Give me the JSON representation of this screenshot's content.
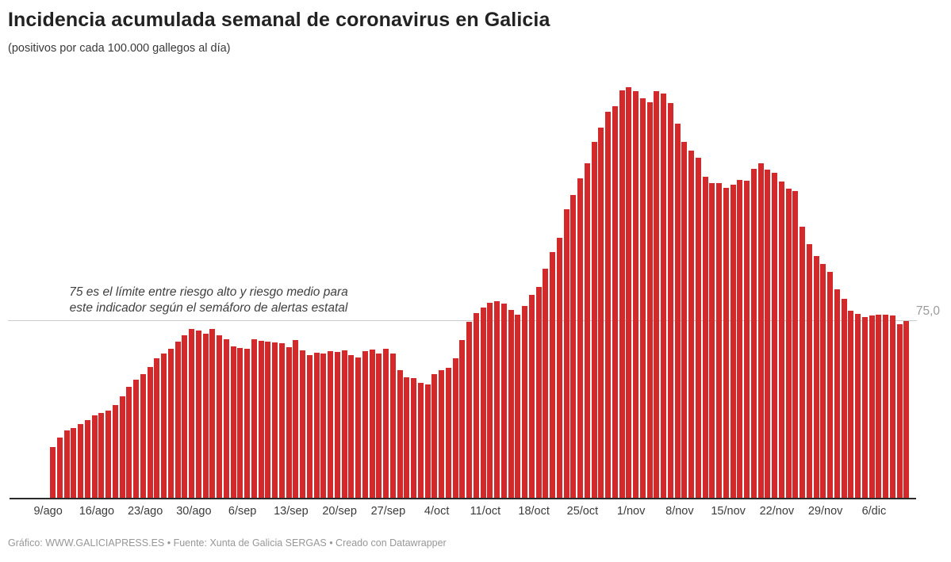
{
  "header": {
    "title": "Incidencia acumulada semanal de coronavirus en Galicia",
    "subtitle": "(positivos por cada 100.000 gallegos al día)"
  },
  "annotation": {
    "line1": "75 es el límite entre riesgo alto y riesgo medio para",
    "line2": "este indicador según el semáforo de alertas estatal"
  },
  "footer": {
    "text": "Gráfico: WWW.GALICIAPRESS.ES • Fuente: Xunta de Galicia SERGAS • Creado con Datawrapper"
  },
  "chart_data": {
    "type": "bar",
    "title": "Incidencia acumulada semanal de coronavirus en Galicia",
    "subtitle": "(positivos por cada 100.000 gallegos al día)",
    "xlabel": "",
    "ylabel": "positivos por cada 100.000 gallegos al día",
    "ylim": [
      0,
      180
    ],
    "grid": "none (single reference line only)",
    "bar_color": "#d4292b",
    "reference_line": {
      "value": 75,
      "label": "75,0",
      "color": "#cccccc",
      "annotation": "75 es el límite entre riesgo alto y riesgo medio para este indicador según el semáforo de alertas estatal"
    },
    "x_tick_labels": [
      "9/ago",
      "16/ago",
      "23/ago",
      "30/ago",
      "6/sep",
      "13/sep",
      "20/sep",
      "27/sep",
      "4/oct",
      "11/oct",
      "18/oct",
      "25/oct",
      "1/nov",
      "8/nov",
      "15/nov",
      "22/nov",
      "29/nov",
      "6/dic"
    ],
    "tick_interval_days": 7,
    "values": [
      21.5,
      25.5,
      28.5,
      29.5,
      31.5,
      33,
      35,
      36,
      37,
      39.5,
      43,
      47,
      50,
      52.5,
      55.5,
      59,
      61,
      63,
      66,
      69,
      71.5,
      71,
      69.5,
      71.5,
      69,
      67,
      64,
      63.5,
      63.3,
      67.2,
      66.5,
      66,
      65.8,
      65.5,
      63.8,
      66.8,
      62.5,
      60.5,
      61.5,
      61,
      62.3,
      61.8,
      62.5,
      60.5,
      59.5,
      62,
      62.8,
      61.2,
      63,
      61,
      54,
      51,
      50.8,
      48.8,
      48.2,
      52.5,
      54.1,
      55.1,
      59.2,
      66.8,
      74.7,
      78.3,
      80.6,
      82.5,
      83.3,
      82.1,
      79.4,
      77.6,
      81.3,
      86,
      89.1,
      96.8,
      104,
      110,
      122,
      128,
      135,
      141.5,
      150.7,
      156.5,
      163.4,
      165.7,
      172.4,
      173.5,
      172,
      169,
      167.2,
      172,
      171,
      167,
      158.2,
      150.5,
      147,
      143.8,
      135.7,
      133.1,
      133.1,
      131.2,
      132.6,
      134.5,
      134,
      139.1,
      141.4,
      138.7,
      137.6,
      133.7,
      130.9,
      129.8,
      114.7,
      107.2,
      102.4,
      99,
      95.6,
      88.4,
      84.2,
      79.2,
      78,
      76.4,
      77.3,
      77.5,
      77.5,
      77.2,
      73.5,
      74.9
    ]
  }
}
